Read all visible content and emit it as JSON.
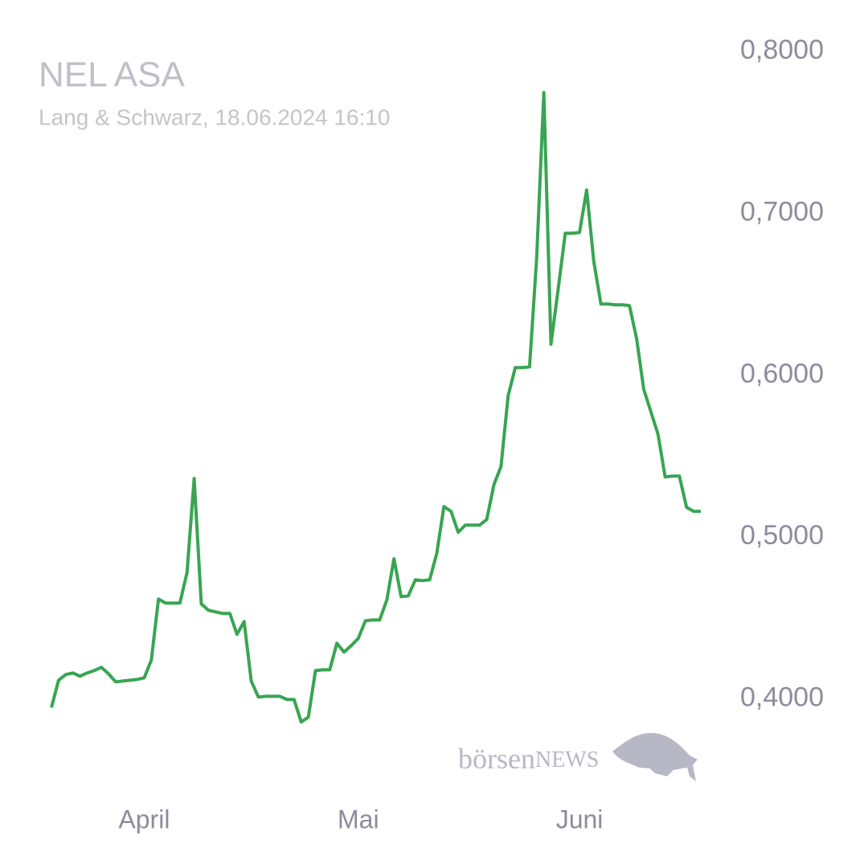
{
  "chart_data": {
    "type": "line",
    "title": "NEL ASA",
    "subtitle": "Lang & Schwarz, 18.06.2024 16:10",
    "watermark": {
      "lead": "börsen",
      "brand": "NEWS"
    },
    "color": "#38a552",
    "grid": false,
    "y_axis_side": "right",
    "ylim": [
      0.35,
      0.82
    ],
    "yticks": [
      {
        "value": 0.4,
        "label": "0,4000"
      },
      {
        "value": 0.5,
        "label": "0,5000"
      },
      {
        "value": 0.6,
        "label": "0,6000"
      },
      {
        "value": 0.7,
        "label": "0,7000"
      },
      {
        "value": 0.8,
        "label": "0,8000"
      }
    ],
    "categories": [
      null,
      null,
      null,
      null,
      null,
      null,
      null,
      null,
      null,
      null,
      null,
      null,
      null,
      "April",
      null,
      null,
      null,
      null,
      null,
      null,
      null,
      null,
      null,
      null,
      null,
      null,
      null,
      null,
      null,
      null,
      null,
      null,
      null,
      null,
      null,
      null,
      null,
      null,
      null,
      null,
      null,
      null,
      null,
      "Mai",
      null,
      null,
      null,
      null,
      null,
      null,
      null,
      null,
      null,
      null,
      null,
      null,
      null,
      null,
      null,
      null,
      null,
      null,
      null,
      null,
      null,
      null,
      null,
      null,
      null,
      null,
      null,
      null,
      null,
      null,
      "Juni",
      null,
      null,
      null,
      null,
      null,
      null,
      null,
      null,
      null,
      null,
      null,
      null,
      null,
      null,
      null,
      null,
      null
    ],
    "values": [
      0.3945,
      0.4114,
      0.4149,
      0.4159,
      0.4139,
      0.4159,
      0.4174,
      0.4194,
      0.4154,
      0.4104,
      0.4109,
      0.4114,
      0.4119,
      0.4129,
      0.4239,
      0.4616,
      0.4591,
      0.4591,
      0.4591,
      0.478,
      0.5361,
      0.4586,
      0.4547,
      0.4537,
      0.4527,
      0.4527,
      0.4398,
      0.4477,
      0.4109,
      0.401,
      0.4015,
      0.4015,
      0.4015,
      0.3995,
      0.3995,
      0.3856,
      0.3886,
      0.4174,
      0.4179,
      0.4179,
      0.4343,
      0.4288,
      0.4328,
      0.4373,
      0.4482,
      0.4487,
      0.4487,
      0.4611,
      0.4865,
      0.4631,
      0.4636,
      0.4735,
      0.473,
      0.4735,
      0.4899,
      0.5188,
      0.5158,
      0.5029,
      0.5073,
      0.5073,
      0.5073,
      0.5108,
      0.5322,
      0.5436,
      0.5873,
      0.6047,
      0.6047,
      0.6052,
      0.6728,
      0.7747,
      0.6191,
      0.6529,
      0.6877,
      0.6877,
      0.6882,
      0.7145,
      0.6703,
      0.644,
      0.644,
      0.6435,
      0.6435,
      0.643,
      0.6226,
      0.5913,
      0.5774,
      0.5635,
      0.5371,
      0.5376,
      0.5376,
      0.5183,
      0.5158,
      0.5158
    ]
  }
}
